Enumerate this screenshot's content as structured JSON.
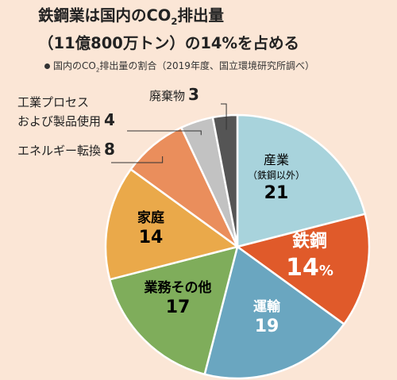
{
  "title": {
    "line1_a": "鉄鋼業は国内のCO",
    "line1_sub": "2",
    "line1_b": "排出量",
    "line2": "（11億800万トン）の14%を占める"
  },
  "note": {
    "a": "国内のCO",
    "sub": "2",
    "b": "排出量の割合（2019年度、国立環境研究所調べ）"
  },
  "chart_data": {
    "type": "pie",
    "start": "12 o'clock, clockwise",
    "unit": "%",
    "slices": [
      {
        "label": "産業",
        "sublabel": "（鉄鋼以外）",
        "value": 21,
        "color": "#a8d3dc"
      },
      {
        "label": "鉄鋼",
        "value": 14,
        "display": "14%",
        "color": "#e05a2a"
      },
      {
        "label": "運輸",
        "value": 19,
        "color": "#6aa6c0"
      },
      {
        "label": "業務その他",
        "value": 17,
        "color": "#7fad5b"
      },
      {
        "label": "家庭",
        "value": 14,
        "color": "#eaa94a"
      },
      {
        "label": "エネルギー転換",
        "value": 8,
        "color": "#ea8e5c"
      },
      {
        "label": "工業プロセスおよび製品使用",
        "value": 4,
        "color": "#c2c2c2"
      },
      {
        "label": "廃棄物",
        "value": 3,
        "color": "#555555"
      }
    ]
  },
  "external_labels": {
    "waste": {
      "text": "廃棄物",
      "value": "3"
    },
    "industrial": {
      "text1": "工業プロセス",
      "text2": "および製品使用",
      "value": "4"
    },
    "energy": {
      "text": "エネルギー転換",
      "value": "8"
    }
  },
  "internal_labels": {
    "industry": {
      "name": "産業",
      "sub": "（鉄鋼以外）",
      "value": "21"
    },
    "steel": {
      "name": "鉄鋼",
      "value": "14",
      "unit": "%"
    },
    "transport": {
      "name": "運輸",
      "value": "19"
    },
    "business": {
      "name": "業務その他",
      "value": "17"
    },
    "household": {
      "name": "家庭",
      "value": "14"
    }
  }
}
